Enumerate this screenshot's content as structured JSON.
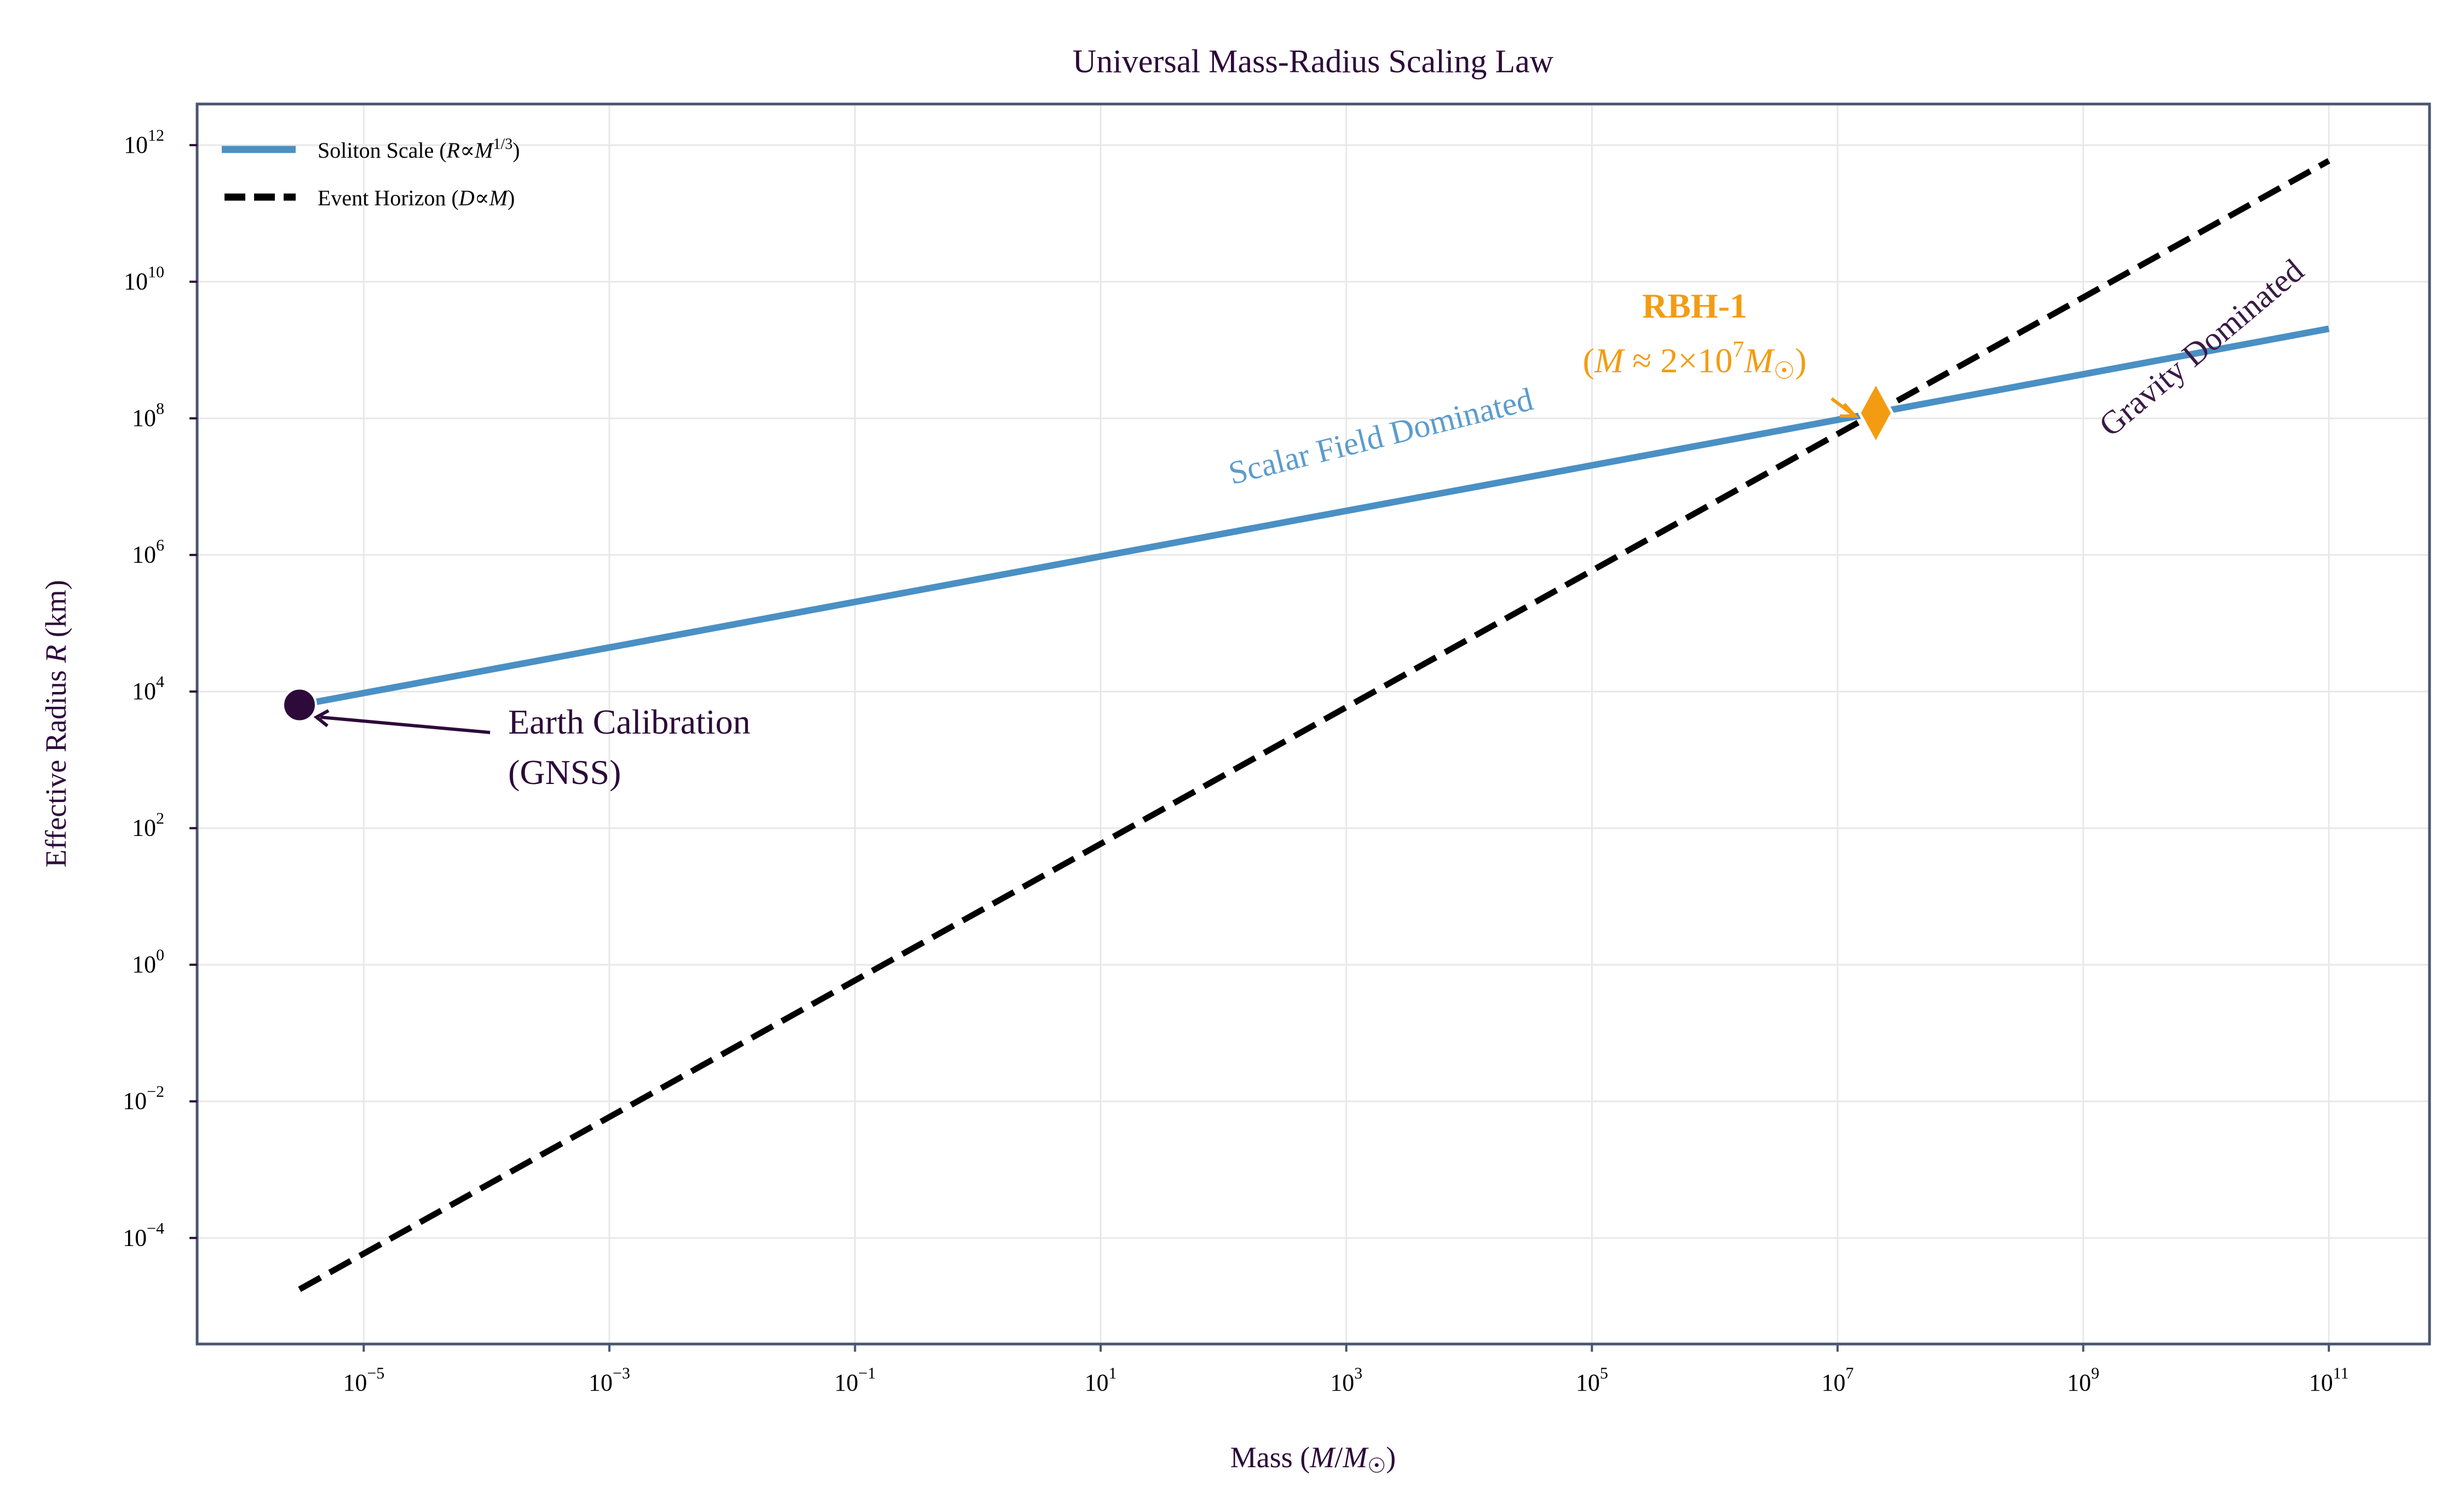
{
  "chart_data": {
    "type": "line",
    "title": "Universal Mass-Radius Scaling Law",
    "xlabel": "Mass (M/M☉)",
    "ylabel": "Effective Radius R (km)",
    "xscale": "log",
    "yscale": "log",
    "xlim": [
      4.4e-07,
      660000000000.0
    ],
    "ylim": [
      2.8e-06,
      4000000000000.0
    ],
    "grid": true,
    "legend_position": "top-left",
    "x_ticks": [
      "10^-5",
      "10^-3",
      "10^-1",
      "10^1",
      "10^3",
      "10^5",
      "10^7",
      "10^9",
      "10^11"
    ],
    "y_ticks": [
      "10^-4",
      "10^-2",
      "10^0",
      "10^2",
      "10^4",
      "10^6",
      "10^8",
      "10^10",
      "10^12"
    ],
    "series": [
      {
        "name": "Soliton Scale (R ∝ M^1/3)",
        "color": "#4a90c4",
        "style": "solid",
        "x": [
          3e-06,
          1e-05,
          0.001,
          0.1,
          10.0,
          1000.0,
          100000.0,
          10000000.0,
          1000000000.0,
          100000000000.0
        ],
        "y": [
          6371,
          9520,
          44200,
          205000,
          951000,
          4420000.0,
          20500000.0,
          95200000.0,
          442000000.0,
          2050000000.0
        ]
      },
      {
        "name": "Event Horizon (D ∝ M)",
        "color": "#000000",
        "style": "dashed",
        "x": [
          3e-06,
          100000000000.0
        ],
        "y": [
          1.77e-05,
          590000000000.0
        ]
      }
    ],
    "points": [
      {
        "label": "Earth Calibration",
        "sublabel": "(GNSS)",
        "x": 3e-06,
        "y": 6371,
        "color": "#2d0a3a",
        "marker": "circle"
      },
      {
        "label": "RBH-1",
        "sublabel": "(M ≈ 2×10^7 M☉)",
        "x": 20500000.0,
        "y": 120000000.0,
        "color": "#f39c12",
        "marker": "diamond"
      }
    ],
    "annotations": [
      {
        "text": "Scalar Field Dominated",
        "color": "#5b9ccc"
      },
      {
        "text": "Gravity Dominated",
        "color": "#3a1a46"
      }
    ]
  }
}
